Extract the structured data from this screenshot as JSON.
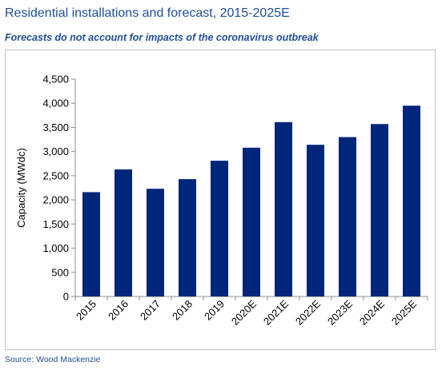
{
  "header": {
    "title": "Residential installations and forecast, 2015-2025E",
    "subtitle": "Forecasts do not account for impacts of the coronavirus outbreak"
  },
  "footer": {
    "source": "Source: Wood Mackenzie"
  },
  "colors": {
    "bar": "#00267a",
    "title": "#1f4e9a",
    "axis": "#8c8c8c"
  },
  "chart_data": {
    "type": "bar",
    "title": "Residential installations and forecast, 2015-2025E",
    "xlabel": "",
    "ylabel": "Capacity (MWdc)",
    "ylim": [
      0,
      4500
    ],
    "yticks": [
      0,
      500,
      1000,
      1500,
      2000,
      2500,
      3000,
      3500,
      4000,
      4500
    ],
    "ytick_labels": [
      "0",
      "500",
      "1,000",
      "1,500",
      "2,000",
      "2,500",
      "3,000",
      "3,500",
      "4,000",
      "4,500"
    ],
    "categories": [
      "2015",
      "2016",
      "2017",
      "2018",
      "2019",
      "2020E",
      "2021E",
      "2022E",
      "2023E",
      "2024E",
      "2025E"
    ],
    "values": [
      2160,
      2630,
      2230,
      2430,
      2810,
      3080,
      3610,
      3140,
      3300,
      3570,
      3950
    ],
    "grid": false,
    "legend": "none"
  }
}
